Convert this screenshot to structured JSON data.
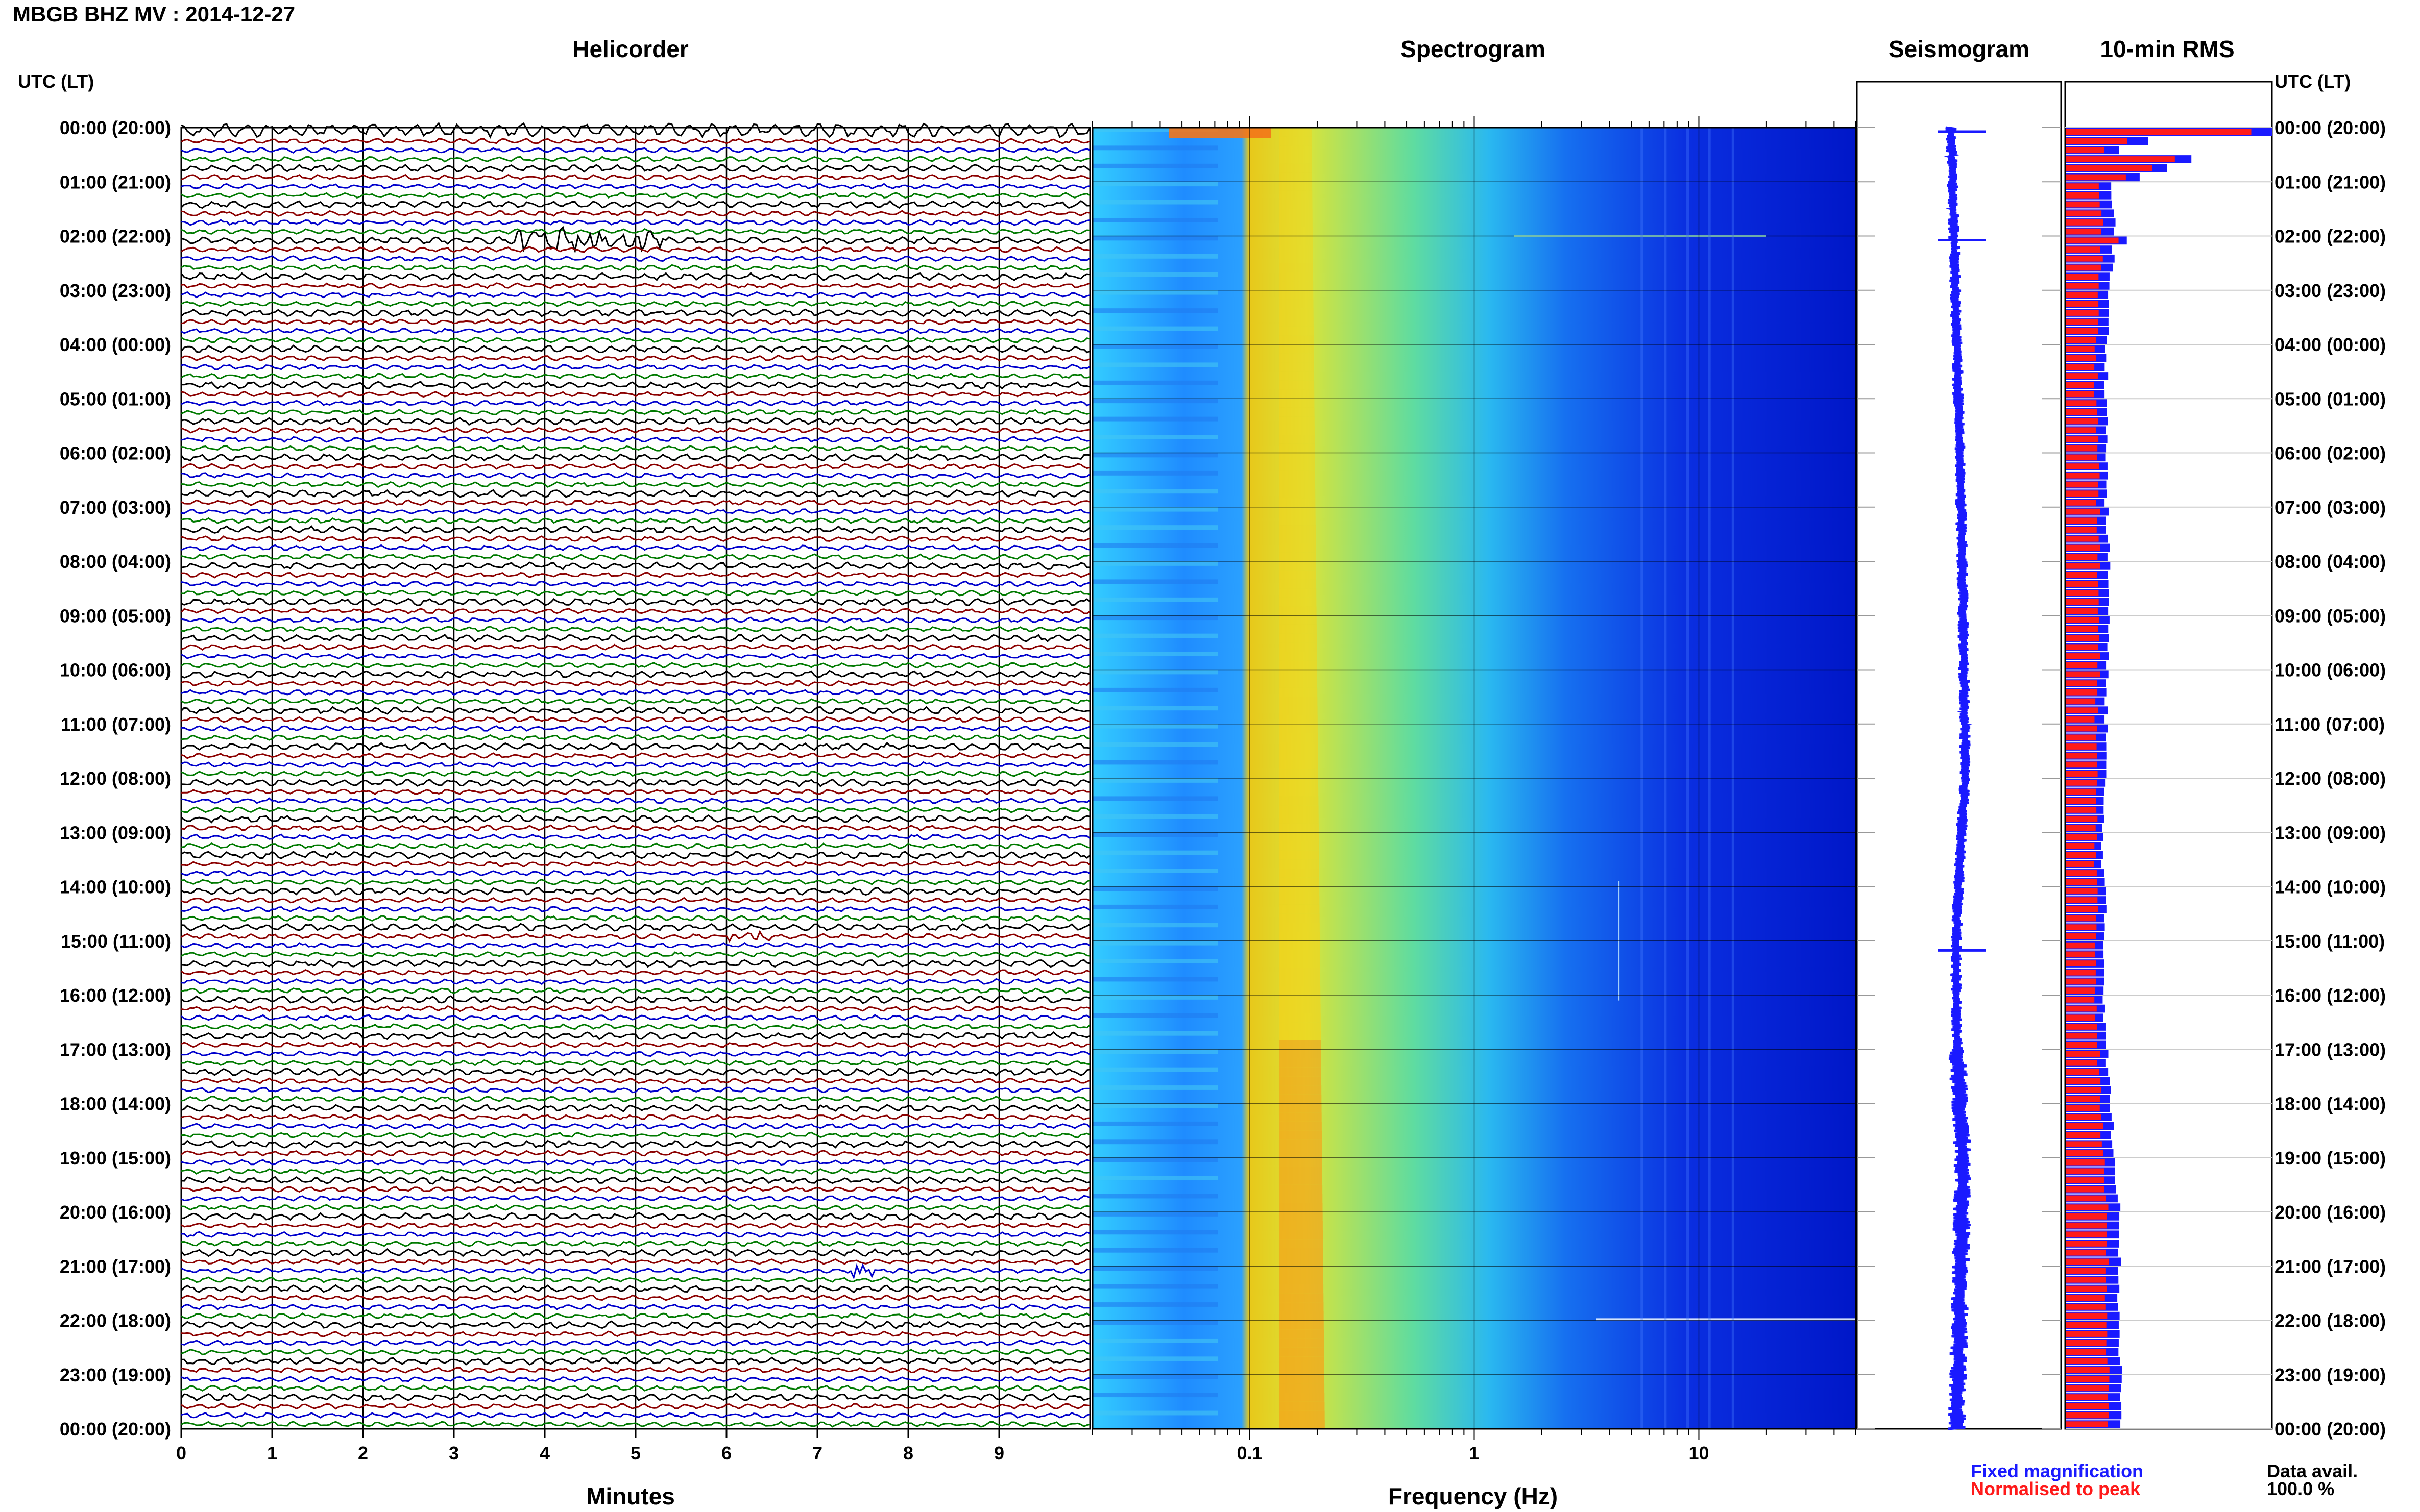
{
  "title": "MBGB BHZ MV : 2014-12-27",
  "panels": {
    "helicorder": "Helicorder",
    "spectrogram": "Spectrogram",
    "seismogram": "Seismogram",
    "rms": "10-min RMS"
  },
  "time_axis_label": "UTC (LT)",
  "time_labels": [
    "00:00 (20:00)",
    "01:00 (21:00)",
    "02:00 (22:00)",
    "03:00 (23:00)",
    "04:00 (00:00)",
    "05:00 (01:00)",
    "06:00 (02:00)",
    "07:00 (03:00)",
    "08:00 (04:00)",
    "09:00 (05:00)",
    "10:00 (06:00)",
    "11:00 (07:00)",
    "12:00 (08:00)",
    "13:00 (09:00)",
    "14:00 (10:00)",
    "15:00 (11:00)",
    "16:00 (12:00)",
    "17:00 (13:00)",
    "18:00 (14:00)",
    "19:00 (15:00)",
    "20:00 (16:00)",
    "21:00 (17:00)",
    "22:00 (18:00)",
    "23:00 (19:00)",
    "00:00 (20:00)"
  ],
  "legend": {
    "fixed": "Fixed magnification",
    "normalised": "Normalised to peak",
    "avail_label": "Data avail.",
    "avail_value": "100.0 %"
  },
  "colors": {
    "trace_cycle": [
      "#000000",
      "#8b0000",
      "#0000cc",
      "#007a00"
    ],
    "seismogram": "#1a1aff",
    "rms_fixed": "#1a1aff",
    "rms_norm": "#ff1a1a"
  },
  "chart_data": [
    {
      "type": "line",
      "name": "helicorder",
      "title": "Helicorder",
      "xlabel": "Minutes",
      "x_ticks": [
        0,
        1,
        2,
        3,
        4,
        5,
        6,
        7,
        8,
        9
      ],
      "xlim": [
        0,
        10
      ],
      "rows": 144,
      "row_minutes": 10,
      "events": [
        {
          "row": 12,
          "minute_start": 3.7,
          "minute_end": 5.3,
          "amplitude": 1.4
        },
        {
          "row": 89,
          "minute_start": 6.0,
          "minute_end": 6.5,
          "amplitude": 0.6
        },
        {
          "row": 126,
          "minute_start": 7.4,
          "minute_end": 7.6,
          "amplitude": 0.8
        }
      ]
    },
    {
      "type": "heatmap",
      "name": "spectrogram",
      "title": "Spectrogram",
      "xlabel": "Frequency (Hz)",
      "x_scale": "log",
      "x_ticks": [
        0.1,
        1,
        10
      ],
      "x_tick_labels": [
        "0.1",
        "1",
        "10"
      ],
      "xlim": [
        0.02,
        50
      ],
      "microseism_peak_hz": 0.15,
      "colormap": "jet"
    },
    {
      "type": "line",
      "name": "seismogram",
      "title": "Seismogram",
      "spikes_hours": [
        0.0,
        2.0,
        15.1
      ]
    },
    {
      "type": "bar",
      "name": "rms",
      "title": "10-min RMS",
      "orientation": "horizontal",
      "bins": 144,
      "fixed_by_hour": [
        1.0,
        0.23,
        0.24,
        0.21,
        0.2,
        0.2,
        0.2,
        0.2,
        0.21,
        0.21,
        0.2,
        0.2,
        0.19,
        0.18,
        0.19,
        0.19,
        0.19,
        0.2,
        0.22,
        0.24,
        0.27,
        0.26,
        0.26,
        0.27,
        0.27
      ],
      "norm_by_hour": [
        0.9,
        0.17,
        0.18,
        0.16,
        0.15,
        0.15,
        0.16,
        0.16,
        0.16,
        0.16,
        0.16,
        0.15,
        0.15,
        0.15,
        0.15,
        0.15,
        0.15,
        0.16,
        0.17,
        0.19,
        0.21,
        0.2,
        0.2,
        0.21,
        0.21
      ],
      "spike_row": 12,
      "spike_fixed": 0.3,
      "spike_norm": 0.26
    }
  ]
}
